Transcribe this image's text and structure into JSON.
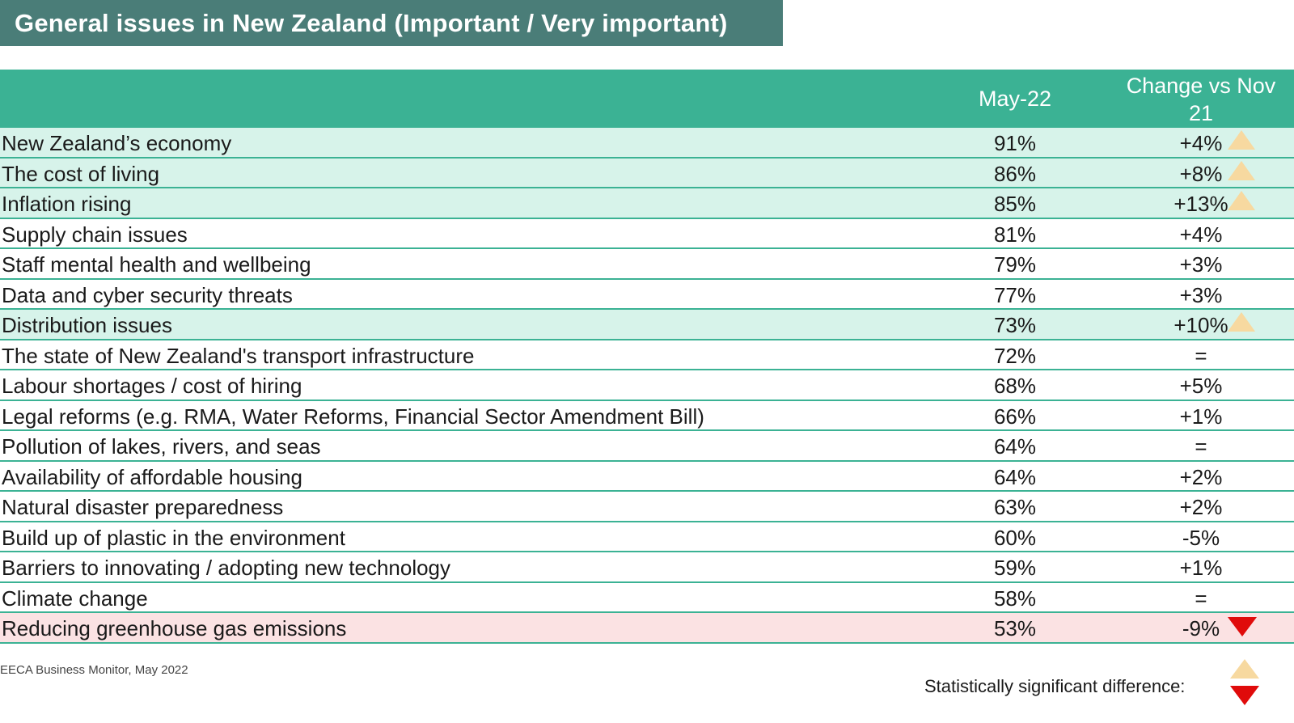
{
  "chart_data": {
    "type": "table",
    "title": "General issues in New Zealand (Important / Very important)",
    "columns": [
      "May-22",
      "Change vs Nov 21"
    ],
    "rows": [
      {
        "label": "New Zealand’s economy",
        "value": "91%",
        "change": "+4%",
        "significant": "up"
      },
      {
        "label": "The cost of living",
        "value": "86%",
        "change": "+8%",
        "significant": "up"
      },
      {
        "label": "Inflation rising",
        "value": "85%",
        "change": "+13%",
        "significant": "up"
      },
      {
        "label": "Supply chain issues",
        "value": "81%",
        "change": "+4%",
        "significant": "none"
      },
      {
        "label": "Staff mental health and wellbeing",
        "value": "79%",
        "change": "+3%",
        "significant": "none"
      },
      {
        "label": "Data and cyber security threats",
        "value": "77%",
        "change": "+3%",
        "significant": "none"
      },
      {
        "label": "Distribution issues",
        "value": "73%",
        "change": "+10%",
        "significant": "up"
      },
      {
        "label": "The state of New Zealand's transport infrastructure",
        "value": "72%",
        "change": "=",
        "significant": "none"
      },
      {
        "label": "Labour shortages / cost of hiring",
        "value": "68%",
        "change": "+5%",
        "significant": "none"
      },
      {
        "label": "Legal reforms (e.g. RMA, Water Reforms, Financial Sector Amendment Bill)",
        "value": "66%",
        "change": "+1%",
        "significant": "none"
      },
      {
        "label": "Pollution of lakes, rivers, and seas",
        "value": "64%",
        "change": "=",
        "significant": "none"
      },
      {
        "label": "Availability of affordable housing",
        "value": "64%",
        "change": "+2%",
        "significant": "none"
      },
      {
        "label": "Natural disaster preparedness",
        "value": "63%",
        "change": "+2%",
        "significant": "none"
      },
      {
        "label": "Build up of plastic in the environment",
        "value": "60%",
        "change": "-5%",
        "significant": "none"
      },
      {
        "label": "Barriers to innovating / adopting new technology",
        "value": "59%",
        "change": "+1%",
        "significant": "none"
      },
      {
        "label": "Climate change",
        "value": "58%",
        "change": "=",
        "significant": "none"
      },
      {
        "label": "Reducing greenhouse gas emissions",
        "value": "53%",
        "change": "-9%",
        "significant": "down"
      }
    ],
    "source": "EECA Business Monitor, May 2022",
    "legend_label": "Statistically significant difference:",
    "colors": {
      "title_bg": "#4a7d78",
      "header_bg": "#3bb294",
      "row_up_bg": "#d7f3ea",
      "row_down_bg": "#fbe2e3",
      "arrow_up": "#f7d9a0",
      "arrow_down": "#e00b0b"
    }
  }
}
